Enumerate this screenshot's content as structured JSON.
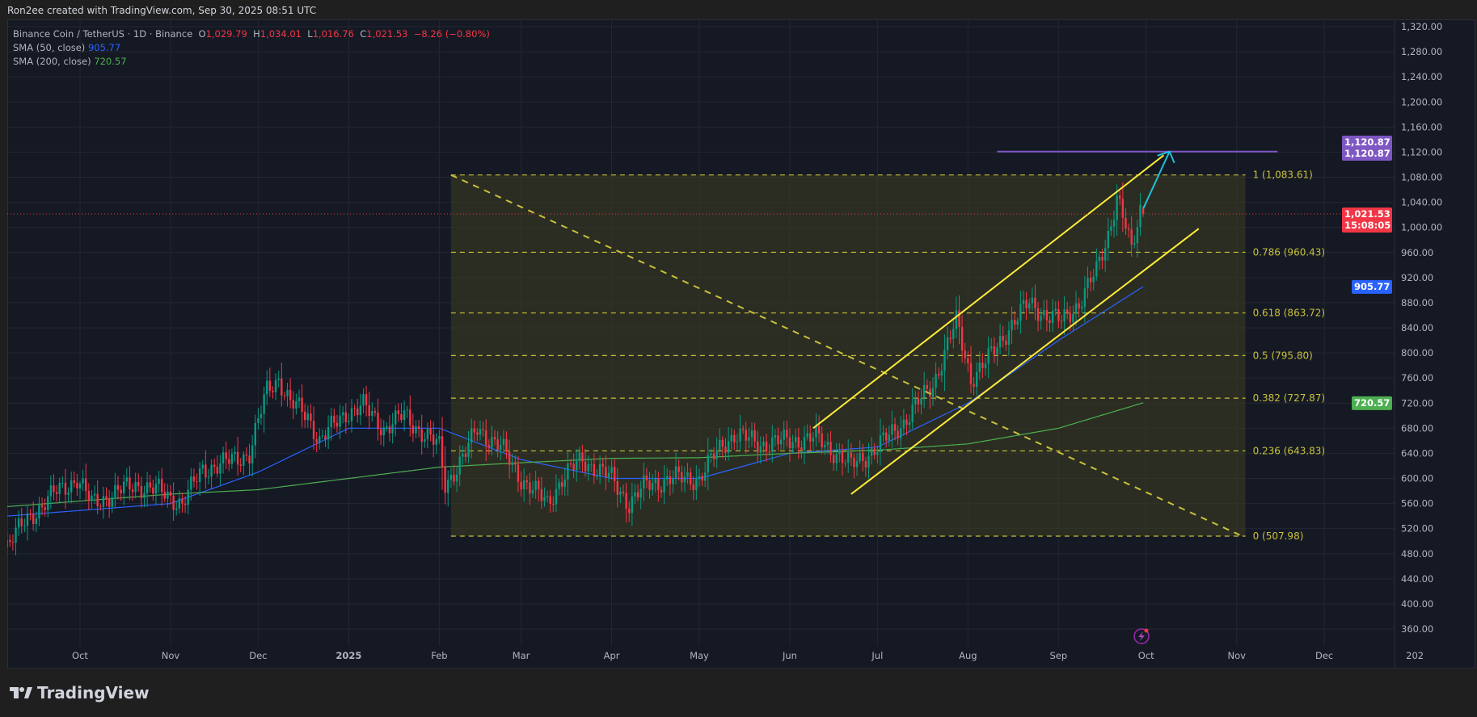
{
  "credit": "Ron2ee created with TradingView.com, Sep 30, 2025 08:51 UTC",
  "legend": {
    "symbol": "Binance Coin / TetherUS · 1D · Binance",
    "o_label": "O",
    "o": "1,029.79",
    "h_label": "H",
    "h": "1,034.01",
    "l_label": "L",
    "l": "1,016.76",
    "c_label": "C",
    "c": "1,021.53",
    "change": "−8.26 (−0.80%)",
    "sma50_label": "SMA (50, close)",
    "sma50": "905.77",
    "sma200_label": "SMA (200, close)",
    "sma200": "720.57"
  },
  "price_tags": {
    "target": "1,120.87",
    "target2": "1,120.87",
    "last": "1,021.53",
    "countdown": "15:08:05",
    "sma50": "905.77",
    "sma200": "720.57"
  },
  "logo": "TradingView",
  "colors": {
    "up": "#089981",
    "down": "#f23645",
    "sma50": "#2962ff",
    "sma200": "#4caf50",
    "fib": "#c9c13a",
    "channel": "#ffeb3b",
    "arrow": "#22c0d8",
    "target": "#7e57c2"
  },
  "chart_data": {
    "type": "candlestick",
    "ylim": [
      340,
      1330
    ],
    "y_ticks": [
      "1,320.00",
      "1,280.00",
      "1,240.00",
      "1,200.00",
      "1,160.00",
      "1,120.00",
      "1,080.00",
      "1,040.00",
      "1,000.00",
      "960.00",
      "920.00",
      "880.00",
      "840.00",
      "800.00",
      "760.00",
      "720.00",
      "680.00",
      "640.00",
      "600.00",
      "560.00",
      "520.00",
      "480.00",
      "440.00",
      "400.00",
      "360.00"
    ],
    "x_ticks": [
      [
        "2024-10-01",
        "Oct"
      ],
      [
        "2024-11-01",
        "Nov"
      ],
      [
        "2024-12-01",
        "Dec"
      ],
      [
        "2025-01-01",
        "2025"
      ],
      [
        "2025-02-01",
        "Feb"
      ],
      [
        "2025-03-01",
        "Mar"
      ],
      [
        "2025-04-01",
        "Apr"
      ],
      [
        "2025-05-01",
        "May"
      ],
      [
        "2025-06-01",
        "Jun"
      ],
      [
        "2025-07-01",
        "Jul"
      ],
      [
        "2025-08-01",
        "Aug"
      ],
      [
        "2025-09-01",
        "Sep"
      ],
      [
        "2025-10-01",
        "Oct"
      ],
      [
        "2025-11-01",
        "Nov"
      ],
      [
        "2025-12-01",
        "Dec"
      ],
      [
        "2026-01-01",
        "202"
      ]
    ],
    "closes": [
      [
        "2024-09-06",
        495
      ],
      [
        "2024-09-14",
        540
      ],
      [
        "2024-09-22",
        575
      ],
      [
        "2024-09-30",
        600
      ],
      [
        "2024-10-05",
        560
      ],
      [
        "2024-10-12",
        575
      ],
      [
        "2024-10-20",
        590
      ],
      [
        "2024-10-28",
        580
      ],
      [
        "2024-11-05",
        560
      ],
      [
        "2024-11-12",
        615
      ],
      [
        "2024-11-20",
        625
      ],
      [
        "2024-11-28",
        640
      ],
      [
        "2024-12-04",
        740
      ],
      [
        "2024-12-08",
        760
      ],
      [
        "2024-12-12",
        720
      ],
      [
        "2024-12-18",
        700
      ],
      [
        "2024-12-22",
        660
      ],
      [
        "2024-12-31",
        705
      ],
      [
        "2025-01-06",
        715
      ],
      [
        "2025-01-13",
        680
      ],
      [
        "2025-01-20",
        700
      ],
      [
        "2025-01-27",
        670
      ],
      [
        "2025-02-01",
        650
      ],
      [
        "2025-02-03",
        590
      ],
      [
        "2025-02-10",
        640
      ],
      [
        "2025-02-14",
        680
      ],
      [
        "2025-02-22",
        650
      ],
      [
        "2025-03-01",
        600
      ],
      [
        "2025-03-10",
        560
      ],
      [
        "2025-03-15",
        600
      ],
      [
        "2025-03-22",
        630
      ],
      [
        "2025-04-01",
        600
      ],
      [
        "2025-04-07",
        560
      ],
      [
        "2025-04-13",
        590
      ],
      [
        "2025-04-22",
        600
      ],
      [
        "2025-05-01",
        600
      ],
      [
        "2025-05-09",
        655
      ],
      [
        "2025-05-13",
        670
      ],
      [
        "2025-05-22",
        655
      ],
      [
        "2025-06-01",
        660
      ],
      [
        "2025-06-10",
        665
      ],
      [
        "2025-06-17",
        640
      ],
      [
        "2025-06-22",
        620
      ],
      [
        "2025-07-01",
        650
      ],
      [
        "2025-07-10",
        690
      ],
      [
        "2025-07-20",
        750
      ],
      [
        "2025-07-28",
        850
      ],
      [
        "2025-08-02",
        760
      ],
      [
        "2025-08-08",
        790
      ],
      [
        "2025-08-15",
        840
      ],
      [
        "2025-08-22",
        880
      ],
      [
        "2025-08-28",
        860
      ],
      [
        "2025-09-02",
        850
      ],
      [
        "2025-09-08",
        880
      ],
      [
        "2025-09-14",
        930
      ],
      [
        "2025-09-18",
        990
      ],
      [
        "2025-09-21",
        1050
      ],
      [
        "2025-09-24",
        1000
      ],
      [
        "2025-09-26",
        960
      ],
      [
        "2025-09-29",
        1029.79
      ],
      [
        "2025-09-30",
        1021.53
      ]
    ],
    "last_candle": {
      "date": "2025-09-30",
      "open": 1029.79,
      "high": 1034.01,
      "low": 1016.76,
      "close": 1021.53
    },
    "series": [
      {
        "name": "SMA (50, close)",
        "values": [
          [
            "2024-09-06",
            540
          ],
          [
            "2024-11-01",
            560
          ],
          [
            "2024-12-01",
            610
          ],
          [
            "2025-01-01",
            680
          ],
          [
            "2025-02-01",
            680
          ],
          [
            "2025-03-01",
            630
          ],
          [
            "2025-04-01",
            600
          ],
          [
            "2025-05-01",
            600
          ],
          [
            "2025-06-01",
            640
          ],
          [
            "2025-07-01",
            650
          ],
          [
            "2025-08-01",
            720
          ],
          [
            "2025-09-01",
            820
          ],
          [
            "2025-09-30",
            905.77
          ]
        ]
      },
      {
        "name": "SMA (200, close)",
        "values": [
          [
            "2024-09-06",
            555
          ],
          [
            "2024-11-01",
            575
          ],
          [
            "2024-12-01",
            582
          ],
          [
            "2025-01-01",
            600
          ],
          [
            "2025-02-01",
            618
          ],
          [
            "2025-03-01",
            625
          ],
          [
            "2025-04-01",
            632
          ],
          [
            "2025-05-01",
            633
          ],
          [
            "2025-06-01",
            640
          ],
          [
            "2025-07-01",
            645
          ],
          [
            "2025-08-01",
            655
          ],
          [
            "2025-09-01",
            680
          ],
          [
            "2025-09-30",
            720.57
          ]
        ]
      }
    ],
    "fibonacci": {
      "start": "2025-02-05",
      "end": "2025-11-04",
      "levels": [
        {
          "ratio": 1,
          "price": 1083.61,
          "label": "1 (1,083.61)"
        },
        {
          "ratio": 0.786,
          "price": 960.43,
          "label": "0.786 (960.43)"
        },
        {
          "ratio": 0.618,
          "price": 863.72,
          "label": "0.618 (863.72)"
        },
        {
          "ratio": 0.5,
          "price": 795.8,
          "label": "0.5 (795.80)"
        },
        {
          "ratio": 0.382,
          "price": 727.87,
          "label": "0.382 (727.87)"
        },
        {
          "ratio": 0.236,
          "price": 643.83,
          "label": "0.236 (643.83)"
        },
        {
          "ratio": 0,
          "price": 507.98,
          "label": "0 (507.98)"
        }
      ]
    },
    "trend_lines": [
      {
        "name": "fib-diagonal",
        "from": [
          "2025-02-05",
          1083.61
        ],
        "to": [
          "2025-11-02",
          510
        ]
      },
      {
        "name": "channel-upper",
        "from": [
          "2025-06-09",
          680
        ],
        "to": [
          "2025-10-07",
          1115
        ]
      },
      {
        "name": "channel-lower",
        "from": [
          "2025-06-22",
          575
        ],
        "to": [
          "2025-10-19",
          998
        ]
      }
    ],
    "arrow": {
      "from": [
        "2025-09-30",
        1030
      ],
      "to": [
        "2025-10-09",
        1120.87
      ]
    },
    "target_line": {
      "price": 1120.87,
      "from": "2025-08-11",
      "to": "2025-11-15"
    },
    "last_price": 1021.53
  }
}
